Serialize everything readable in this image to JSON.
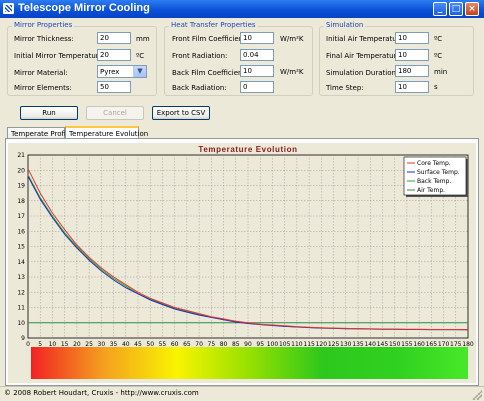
{
  "window": {
    "title": "Telescope Mirror Cooling",
    "controls": {
      "minimize": "_",
      "maximize": "□",
      "close": "×"
    }
  },
  "mirror": {
    "title": "Mirror Properties",
    "thickness_label": "Mirror Thickness:",
    "thickness": "20",
    "thickness_unit": "mm",
    "init_temp_label": "Initial Mirror Temperature:",
    "init_temp": "20",
    "init_temp_unit": "ºC",
    "material_label": "Mirror Material:",
    "material": "Pyrex",
    "elements_label": "Mirror Elements:",
    "elements": "50"
  },
  "heat": {
    "title": "Heat Transfer Properties",
    "front_film_label": "Front Film Coefficient:",
    "front_film": "10",
    "front_film_unit": "W/m²K",
    "front_rad_label": "Front Radiation:",
    "front_rad": "0.04",
    "back_film_label": "Back Film Coefficient:",
    "back_film": "10",
    "back_film_unit": "W/m²K",
    "back_rad_label": "Back Radiation:",
    "back_rad": "0"
  },
  "sim": {
    "title": "Simulation",
    "init_air_label": "Initial Air Temperature:",
    "init_air": "10",
    "init_air_unit": "ºC",
    "final_air_label": "Final Air Temperature:",
    "final_air": "10",
    "final_air_unit": "ºC",
    "duration_label": "Simulation Duration:",
    "duration": "180",
    "duration_unit": "min",
    "step_label": "Time Step:",
    "step": "10",
    "step_unit": "s"
  },
  "actions": {
    "run": "Run",
    "cancel": "Cancel",
    "export": "Export to CSV"
  },
  "tabs": [
    {
      "label": "Temperate Profile"
    },
    {
      "label": "Temperature Evolution"
    }
  ],
  "status": "© 2008 Robert Houdart, Cruxis  -  http://www.cruxis.com",
  "chart_data": {
    "type": "line",
    "title": "Temperature Evolution",
    "xlim": [
      0,
      180
    ],
    "ylim": [
      9,
      21
    ],
    "x_ticks": [
      0,
      5,
      10,
      15,
      20,
      25,
      30,
      35,
      40,
      45,
      50,
      55,
      60,
      65,
      70,
      75,
      80,
      85,
      90,
      95,
      100,
      105,
      110,
      115,
      120,
      125,
      130,
      135,
      140,
      145,
      150,
      155,
      160,
      165,
      170,
      175,
      180
    ],
    "y_ticks": [
      9,
      10,
      11,
      12,
      13,
      14,
      15,
      16,
      17,
      18,
      19,
      20,
      21
    ],
    "grid": true,
    "legend_position": "top-right",
    "x": [
      0,
      5,
      10,
      15,
      20,
      25,
      30,
      35,
      40,
      45,
      50,
      55,
      60,
      65,
      70,
      75,
      80,
      85,
      90,
      95,
      100,
      105,
      110,
      115,
      120,
      125,
      130,
      135,
      140,
      145,
      150,
      155,
      160,
      165,
      170,
      175,
      180
    ],
    "series": [
      {
        "name": "Core Temp.",
        "color": "#E8352A",
        "values": [
          20.1,
          18.5,
          17.2,
          16.1,
          15.1,
          14.3,
          13.6,
          13.0,
          12.5,
          12.0,
          11.6,
          11.3,
          11.0,
          10.8,
          10.6,
          10.4,
          10.25,
          10.1,
          10.0,
          9.9,
          9.85,
          9.8,
          9.75,
          9.7,
          9.67,
          9.65,
          9.63,
          9.61,
          9.6,
          9.59,
          9.58,
          9.57,
          9.57,
          9.56,
          9.56,
          9.56,
          9.55
        ]
      },
      {
        "name": "Surface Temp.",
        "color": "#1C2FBF",
        "values": [
          19.6,
          18.1,
          16.9,
          15.8,
          14.9,
          14.1,
          13.4,
          12.8,
          12.3,
          11.9,
          11.5,
          11.2,
          10.9,
          10.7,
          10.5,
          10.35,
          10.2,
          10.05,
          9.95,
          9.88,
          9.82,
          9.76,
          9.72,
          9.68,
          9.65,
          9.63,
          9.61,
          9.6,
          9.59,
          9.58,
          9.57,
          9.56,
          9.56,
          9.55,
          9.55,
          9.55,
          9.54
        ]
      },
      {
        "name": "Back Temp.",
        "color": "#2EAA3A",
        "values": [
          19.7,
          18.2,
          17.0,
          15.9,
          15.0,
          14.2,
          13.5,
          12.9,
          12.4,
          11.9,
          11.55,
          11.25,
          10.95,
          10.75,
          10.55,
          10.38,
          10.22,
          10.08,
          9.97,
          9.89,
          9.83,
          9.77,
          9.73,
          9.69,
          9.66,
          9.64,
          9.62,
          9.6,
          9.59,
          9.58,
          9.57,
          9.56,
          9.56,
          9.55,
          9.55,
          9.55,
          9.54
        ]
      },
      {
        "name": "Air Temp.",
        "color": "#2A8C4A",
        "values": [
          10,
          10,
          10,
          10,
          10,
          10,
          10,
          10,
          10,
          10,
          10,
          10,
          10,
          10,
          10,
          10,
          10,
          10,
          10,
          10,
          10,
          10,
          10,
          10,
          10,
          10,
          10,
          10,
          10,
          10,
          10,
          10,
          10,
          10,
          10,
          10,
          10
        ]
      }
    ],
    "colorbar": {
      "stops": [
        "#F22222",
        "#F4A020",
        "#F9F400",
        "#96E000",
        "#2EC81C",
        "#30D020",
        "#48E828"
      ]
    }
  }
}
